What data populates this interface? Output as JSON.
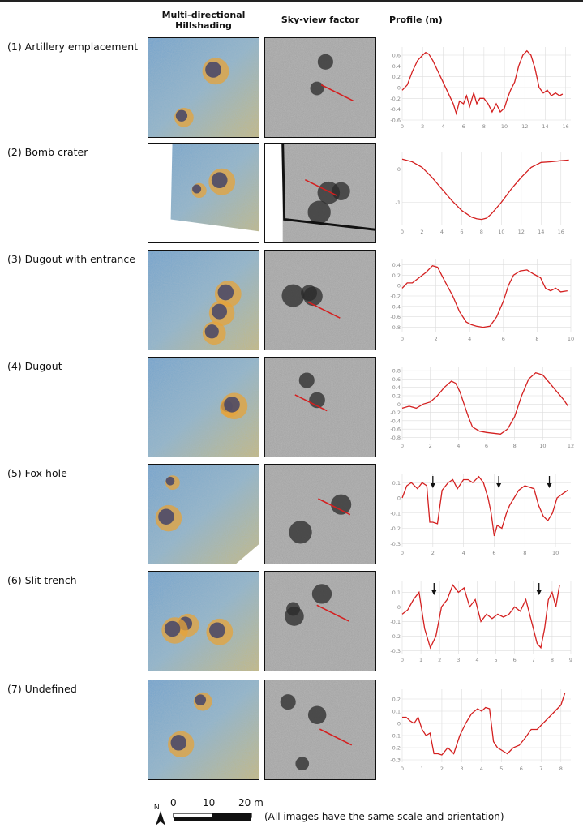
{
  "columns": {
    "hillshade_line1": "Multi-directional",
    "hillshade_line2": "Hillshading",
    "svf": "Sky-view factor",
    "profile": "Profile (m)"
  },
  "rows": [
    {
      "label": "(1) Artillery emplacement"
    },
    {
      "label": "(2) Bomb crater"
    },
    {
      "label": "(3) Dugout with entrance"
    },
    {
      "label": "(4) Dugout"
    },
    {
      "label": "(5) Fox hole"
    },
    {
      "label": "(6) Slit trench"
    },
    {
      "label": "(7) Undefined"
    }
  ],
  "scale": {
    "north": "N",
    "ticks": [
      "0",
      "10",
      "20 m"
    ],
    "note": "(All images have the same scale and orientation)"
  },
  "colors": {
    "profile_line": "#d42020",
    "grid": "#dddddd",
    "tick_text": "#888888"
  },
  "chart_data": [
    {
      "type": "line",
      "xticks": [
        "0",
        "2",
        "4",
        "6",
        "8",
        "10",
        "12",
        "14",
        "16"
      ],
      "yticks": [
        "0.6",
        "0.4",
        "0.2",
        "0",
        "-0.2",
        "-0.4",
        "-0.6"
      ],
      "xlim": [
        0,
        16.5
      ],
      "ylim": [
        -0.6,
        0.75
      ],
      "x": [
        0,
        0.5,
        1,
        1.5,
        2,
        2.3,
        2.6,
        3,
        3.5,
        4,
        4.5,
        5,
        5.3,
        5.6,
        6,
        6.3,
        6.6,
        7,
        7.3,
        7.6,
        8,
        8.4,
        8.8,
        9.2,
        9.6,
        10,
        10.3,
        10.6,
        11,
        11.4,
        11.8,
        12.2,
        12.6,
        13,
        13.4,
        13.8,
        14.2,
        14.6,
        15,
        15.4,
        15.7
      ],
      "y": [
        -0.05,
        0.05,
        0.3,
        0.5,
        0.6,
        0.65,
        0.62,
        0.5,
        0.3,
        0.1,
        -0.1,
        -0.3,
        -0.48,
        -0.25,
        -0.3,
        -0.15,
        -0.35,
        -0.1,
        -0.3,
        -0.2,
        -0.2,
        -0.3,
        -0.45,
        -0.3,
        -0.45,
        -0.38,
        -0.2,
        -0.05,
        0.1,
        0.4,
        0.6,
        0.68,
        0.6,
        0.35,
        0.0,
        -0.1,
        -0.05,
        -0.15,
        -0.1,
        -0.15,
        -0.12
      ],
      "arrows": []
    },
    {
      "type": "line",
      "xticks": [
        "0",
        "2",
        "4",
        "6",
        "8",
        "10",
        "12",
        "14",
        "16"
      ],
      "yticks": [
        "0",
        "-1"
      ],
      "xlim": [
        0,
        17
      ],
      "ylim": [
        -1.7,
        0.5
      ],
      "x": [
        0,
        1,
        2,
        3,
        4,
        5,
        6,
        7,
        7.5,
        8,
        8.5,
        9,
        10,
        11,
        12,
        13,
        14,
        15,
        16,
        16.8
      ],
      "y": [
        0.3,
        0.22,
        0.05,
        -0.25,
        -0.6,
        -0.95,
        -1.25,
        -1.45,
        -1.5,
        -1.52,
        -1.48,
        -1.35,
        -1.0,
        -0.6,
        -0.25,
        0.05,
        0.2,
        0.22,
        0.25,
        0.27
      ],
      "arrows": []
    },
    {
      "type": "line",
      "xticks": [
        "0",
        "2",
        "4",
        "6",
        "8",
        "10"
      ],
      "yticks": [
        "0.4",
        "0.2",
        "0",
        "-0.2",
        "-0.4",
        "-0.6",
        "-0.8"
      ],
      "xlim": [
        0,
        10
      ],
      "ylim": [
        -0.9,
        0.5
      ],
      "x": [
        0,
        0.3,
        0.6,
        1,
        1.4,
        1.8,
        2.1,
        2.5,
        3,
        3.4,
        3.8,
        4.1,
        4.4,
        4.8,
        5.2,
        5.6,
        6,
        6.3,
        6.6,
        7,
        7.4,
        7.8,
        8.2,
        8.5,
        8.8,
        9.1,
        9.4,
        9.8
      ],
      "y": [
        -0.05,
        0.05,
        0.05,
        0.15,
        0.25,
        0.38,
        0.35,
        0.1,
        -0.2,
        -0.5,
        -0.7,
        -0.75,
        -0.78,
        -0.8,
        -0.78,
        -0.6,
        -0.3,
        0.0,
        0.2,
        0.28,
        0.3,
        0.22,
        0.15,
        -0.05,
        -0.1,
        -0.05,
        -0.12,
        -0.1
      ],
      "arrows": []
    },
    {
      "type": "line",
      "xticks": [
        "0",
        "2",
        "4",
        "6",
        "8",
        "10",
        "12"
      ],
      "yticks": [
        "0.8",
        "0.6",
        "0.4",
        "0.2",
        "0",
        "-0.2",
        "-0.4",
        "-0.6",
        "-0.8"
      ],
      "xlim": [
        0,
        12
      ],
      "ylim": [
        -0.85,
        0.9
      ],
      "x": [
        0,
        0.5,
        1,
        1.5,
        2,
        2.5,
        3,
        3.5,
        3.8,
        4.1,
        4.4,
        4.7,
        5,
        5.5,
        6,
        6.5,
        7,
        7.5,
        8,
        8.5,
        9,
        9.5,
        10,
        10.5,
        11,
        11.5,
        11.8
      ],
      "y": [
        -0.1,
        -0.05,
        -0.1,
        0.0,
        0.05,
        0.2,
        0.4,
        0.55,
        0.5,
        0.3,
        0.0,
        -0.3,
        -0.55,
        -0.65,
        -0.68,
        -0.7,
        -0.72,
        -0.6,
        -0.3,
        0.2,
        0.6,
        0.75,
        0.7,
        0.5,
        0.3,
        0.1,
        -0.05
      ],
      "arrows": []
    },
    {
      "type": "line",
      "xticks": [
        "0",
        "2",
        "4",
        "6",
        "8",
        "10"
      ],
      "yticks": [
        "0.1",
        "0",
        "-0.1",
        "-0.2",
        "-0.3"
      ],
      "xlim": [
        0,
        11
      ],
      "ylim": [
        -0.32,
        0.16
      ],
      "x": [
        0,
        0.3,
        0.6,
        1,
        1.3,
        1.6,
        1.8,
        2,
        2.3,
        2.6,
        3,
        3.3,
        3.6,
        4,
        4.3,
        4.6,
        5,
        5.3,
        5.6,
        5.8,
        6,
        6.2,
        6.5,
        6.8,
        7,
        7.3,
        7.6,
        8,
        8.3,
        8.6,
        8.9,
        9.2,
        9.5,
        9.8,
        10.1,
        10.5,
        10.8
      ],
      "y": [
        0.0,
        0.08,
        0.1,
        0.06,
        0.1,
        0.08,
        -0.16,
        -0.16,
        -0.17,
        0.05,
        0.1,
        0.12,
        0.06,
        0.12,
        0.12,
        0.1,
        0.14,
        0.1,
        0.0,
        -0.1,
        -0.25,
        -0.18,
        -0.2,
        -0.1,
        -0.05,
        0.0,
        0.05,
        0.08,
        0.07,
        0.06,
        -0.05,
        -0.12,
        -0.15,
        -0.1,
        0.0,
        0.03,
        0.05
      ],
      "arrows": [
        2,
        6.3,
        9.6
      ]
    },
    {
      "type": "line",
      "xticks": [
        "0",
        "1",
        "2",
        "3",
        "4",
        "5",
        "6",
        "7",
        "8",
        "9"
      ],
      "yticks": [
        "0.1",
        "0",
        "-0.1",
        "-0.2",
        "-0.3"
      ],
      "xlim": [
        0,
        9
      ],
      "ylim": [
        -0.32,
        0.18
      ],
      "x": [
        0,
        0.3,
        0.6,
        0.9,
        1.2,
        1.5,
        1.8,
        2.1,
        2.4,
        2.7,
        3,
        3.3,
        3.6,
        3.9,
        4.2,
        4.5,
        4.8,
        5.1,
        5.4,
        5.7,
        6,
        6.3,
        6.6,
        6.9,
        7.2,
        7.4,
        7.6,
        7.8,
        8,
        8.2,
        8.4
      ],
      "y": [
        -0.05,
        -0.02,
        0.05,
        0.1,
        -0.15,
        -0.28,
        -0.2,
        0.0,
        0.05,
        0.15,
        0.1,
        0.13,
        0.0,
        0.05,
        -0.1,
        -0.05,
        -0.08,
        -0.05,
        -0.07,
        -0.05,
        0.0,
        -0.03,
        0.05,
        -0.1,
        -0.25,
        -0.28,
        -0.15,
        0.05,
        0.1,
        0.0,
        0.15
      ],
      "arrows": [
        1.7,
        7.3
      ]
    },
    {
      "type": "line",
      "xticks": [
        "0",
        "1",
        "2",
        "3",
        "4",
        "5",
        "6",
        "7",
        "8"
      ],
      "yticks": [
        "0.2",
        "0.1",
        "0",
        "-0.1",
        "-0.2",
        "-0.3"
      ],
      "xlim": [
        0,
        8.5
      ],
      "ylim": [
        -0.32,
        0.28
      ],
      "x": [
        0,
        0.2,
        0.4,
        0.6,
        0.8,
        1,
        1.2,
        1.4,
        1.6,
        1.8,
        2,
        2.3,
        2.6,
        2.9,
        3.2,
        3.5,
        3.8,
        4,
        4.2,
        4.4,
        4.6,
        4.8,
        5,
        5.3,
        5.6,
        5.9,
        6.2,
        6.5,
        6.8,
        7.1,
        7.4,
        7.7,
        8,
        8.2
      ],
      "y": [
        0.05,
        0.05,
        0.02,
        0.0,
        0.05,
        -0.05,
        -0.1,
        -0.08,
        -0.25,
        -0.25,
        -0.26,
        -0.2,
        -0.25,
        -0.1,
        0.0,
        0.08,
        0.12,
        0.1,
        0.13,
        0.12,
        -0.15,
        -0.2,
        -0.22,
        -0.25,
        -0.2,
        -0.18,
        -0.12,
        -0.05,
        -0.05,
        0.0,
        0.05,
        0.1,
        0.15,
        0.25
      ],
      "arrows": []
    }
  ]
}
